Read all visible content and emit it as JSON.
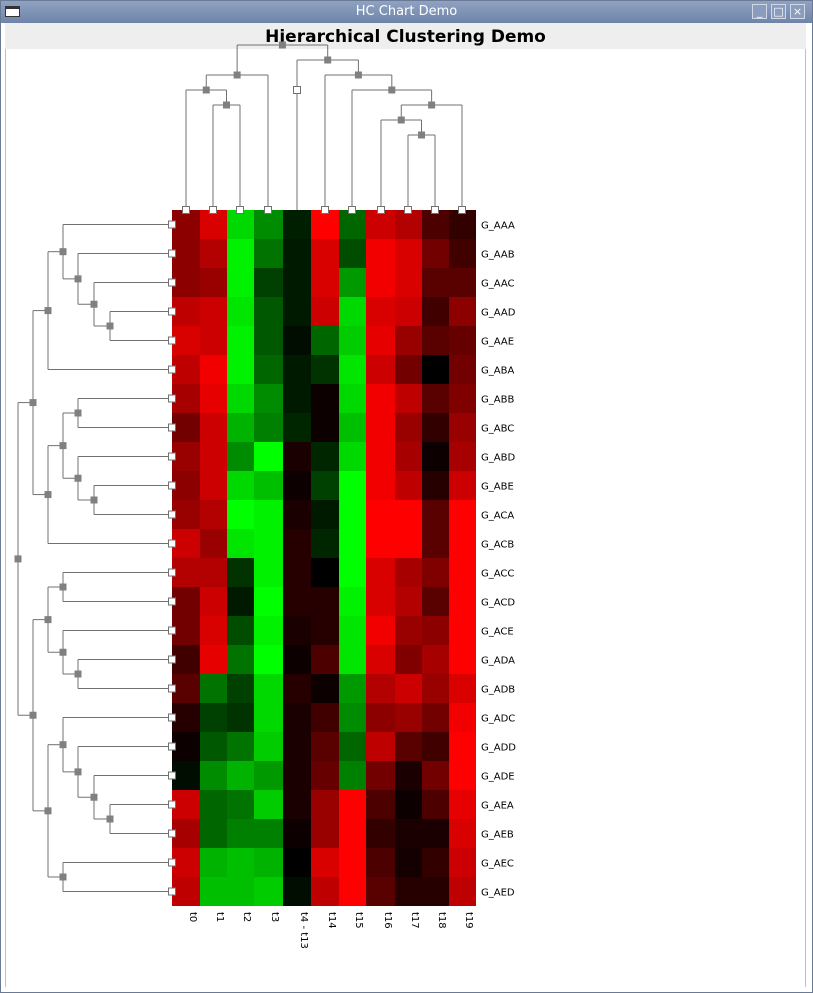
{
  "window": {
    "title": "HC Chart Demo",
    "minimize_label": "_",
    "maximize_label": "□",
    "close_label": "×"
  },
  "chart_data": {
    "type": "heatmap",
    "title": "Hierarchical Clustering Demo",
    "columns": [
      "t0",
      "t1",
      "t2",
      "t3",
      "t4 - t13",
      "t14",
      "t15",
      "t16",
      "t17",
      "t18",
      "t19"
    ],
    "rows": [
      "G_AAA",
      "G_AAB",
      "G_AAC",
      "G_AAD",
      "G_AAE",
      "G_ABA",
      "G_ABB",
      "G_ABC",
      "G_ABD",
      "G_ABE",
      "G_ACA",
      "G_ACB",
      "G_ACC",
      "G_ACD",
      "G_ACE",
      "G_ADA",
      "G_ADB",
      "G_ADC",
      "G_ADD",
      "G_ADE",
      "G_AEA",
      "G_AEB",
      "G_AEC",
      "G_AED"
    ],
    "color_scale": {
      "low": "#00ff00",
      "mid": "#000000",
      "high": "#ff0000",
      "range": [
        -1,
        1
      ]
    },
    "values": [
      [
        0.55,
        0.85,
        -0.85,
        -0.55,
        -0.12,
        1.0,
        -0.4,
        0.8,
        0.7,
        0.3,
        0.2
      ],
      [
        0.55,
        0.7,
        -0.95,
        -0.45,
        -0.1,
        0.85,
        -0.3,
        0.95,
        0.85,
        0.45,
        0.25
      ],
      [
        0.55,
        0.6,
        -0.95,
        -0.25,
        -0.1,
        0.85,
        -0.6,
        0.95,
        0.85,
        0.35,
        0.35
      ],
      [
        0.75,
        0.8,
        -0.9,
        -0.35,
        -0.1,
        0.8,
        -0.85,
        0.85,
        0.8,
        0.25,
        0.55
      ],
      [
        0.85,
        0.8,
        -0.95,
        -0.35,
        -0.05,
        -0.4,
        -0.8,
        0.9,
        0.6,
        0.35,
        0.4
      ],
      [
        0.75,
        0.95,
        -0.95,
        -0.4,
        -0.1,
        -0.2,
        -0.9,
        0.8,
        0.45,
        0.0,
        0.45
      ],
      [
        0.65,
        0.9,
        -0.85,
        -0.55,
        -0.1,
        0.05,
        -0.85,
        0.95,
        0.75,
        0.35,
        0.5
      ],
      [
        0.45,
        0.8,
        -0.7,
        -0.5,
        -0.15,
        0.05,
        -0.75,
        0.95,
        0.6,
        0.2,
        0.6
      ],
      [
        0.6,
        0.8,
        -0.55,
        -1.0,
        0.1,
        -0.15,
        -0.85,
        0.95,
        0.65,
        0.05,
        0.65
      ],
      [
        0.55,
        0.8,
        -0.85,
        -0.75,
        0.05,
        -0.25,
        -1.0,
        0.95,
        0.75,
        0.15,
        0.8
      ],
      [
        0.6,
        0.7,
        -1.0,
        -0.95,
        0.1,
        -0.1,
        -1.0,
        1.0,
        1.0,
        0.35,
        1.0
      ],
      [
        0.8,
        0.6,
        -0.9,
        -0.95,
        0.15,
        -0.15,
        -1.0,
        1.0,
        1.0,
        0.35,
        1.0
      ],
      [
        0.7,
        0.7,
        -0.2,
        -0.95,
        0.15,
        0.0,
        -1.0,
        0.85,
        0.65,
        0.5,
        1.0
      ],
      [
        0.45,
        0.8,
        -0.1,
        -1.0,
        0.15,
        0.15,
        -0.95,
        0.85,
        0.7,
        0.35,
        1.0
      ],
      [
        0.45,
        0.85,
        -0.3,
        -0.95,
        0.1,
        0.15,
        -0.9,
        0.95,
        0.6,
        0.55,
        1.0
      ],
      [
        0.25,
        0.9,
        -0.45,
        -1.0,
        0.05,
        0.3,
        -0.9,
        0.85,
        0.5,
        0.65,
        1.0
      ],
      [
        0.35,
        -0.45,
        -0.25,
        -0.85,
        0.15,
        0.05,
        -0.6,
        0.7,
        0.8,
        0.6,
        0.85
      ],
      [
        0.15,
        -0.25,
        -0.2,
        -0.85,
        0.1,
        0.25,
        -0.55,
        0.55,
        0.6,
        0.45,
        0.95
      ],
      [
        0.05,
        -0.35,
        -0.45,
        -0.8,
        0.1,
        0.35,
        -0.4,
        0.75,
        0.35,
        0.25,
        1.0
      ],
      [
        -0.05,
        -0.55,
        -0.7,
        -0.6,
        0.1,
        0.4,
        -0.5,
        0.45,
        0.1,
        0.45,
        1.0
      ],
      [
        0.8,
        -0.4,
        -0.45,
        -0.8,
        0.1,
        0.6,
        1.0,
        0.3,
        0.05,
        0.3,
        0.9
      ],
      [
        0.65,
        -0.4,
        -0.5,
        -0.5,
        0.05,
        0.6,
        1.0,
        0.2,
        0.1,
        0.1,
        0.85
      ],
      [
        0.8,
        -0.7,
        -0.75,
        -0.7,
        0.0,
        0.85,
        1.0,
        0.3,
        0.08,
        0.2,
        0.8
      ],
      [
        0.75,
        -0.75,
        -0.75,
        -0.8,
        -0.05,
        0.75,
        1.0,
        0.35,
        0.15,
        0.15,
        0.75
      ]
    ],
    "legend": "none",
    "grid": false,
    "row_dendrogram": "left",
    "column_dendrogram": "top"
  }
}
